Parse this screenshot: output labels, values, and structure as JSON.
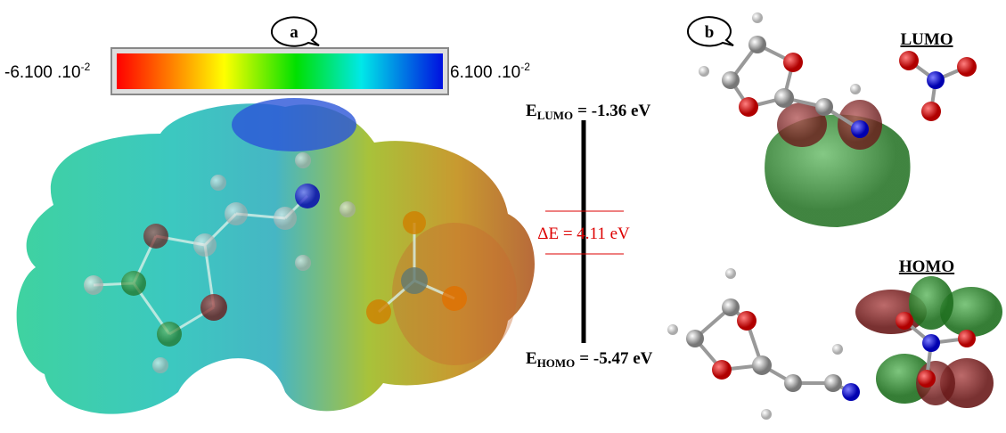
{
  "panel_a": {
    "label": "a",
    "colorbar": {
      "min_label": {
        "mantissa": "-6.100 .10",
        "exponent": "-2"
      },
      "max_label": {
        "mantissa": "6.100 .10",
        "exponent": "-2"
      }
    }
  },
  "energy_diagram": {
    "lumo": {
      "symbol": "E",
      "subscript": "LUMO",
      "value": "= -1.36 eV"
    },
    "gap": "ΔE = 4.11 eV",
    "homo": {
      "symbol": "E",
      "subscript": "HOMO",
      "value": "= -5.47 eV"
    }
  },
  "panel_b": {
    "label": "b",
    "lumo_title": "LUMO",
    "homo_title": "HOMO"
  }
}
